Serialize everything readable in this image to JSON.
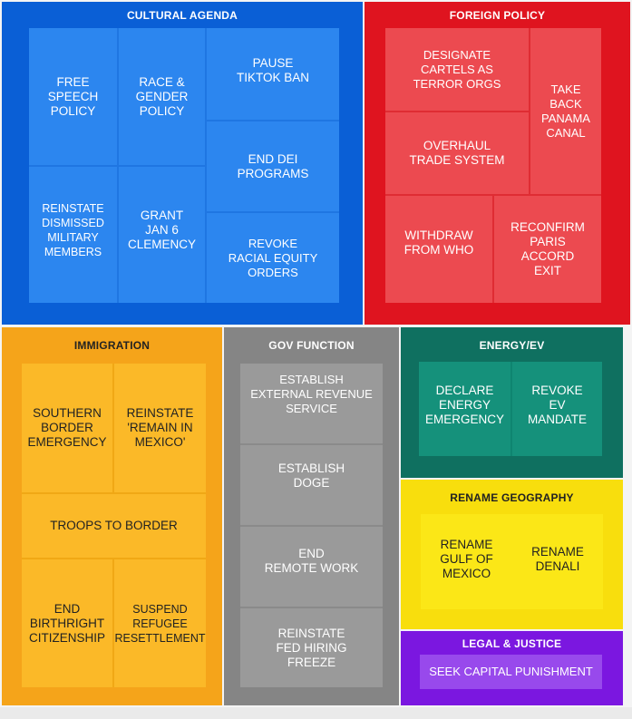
{
  "sections": {
    "cultural": {
      "title": "CULTURAL AGENDA",
      "color": "#0a5fd6",
      "items": [
        "FREE\nSPEECH\nPOLICY",
        "RACE &\nGENDER\nPOLICY",
        "PAUSE\nTIKTOK BAN",
        "END DEI\nPROGRAMS",
        "REINSTATE\nDISMISSED\nMILITARY\nMEMBERS",
        "GRANT\nJAN 6\nCLEMENCY",
        "REVOKE\nRACIAL EQUITY\nORDERS"
      ]
    },
    "foreign": {
      "title": "FOREIGN POLICY",
      "color": "#df141f",
      "items": [
        "DESIGNATE\nCARTELS AS\nTERROR ORGS",
        "TAKE\nBACK\nPANAMA\nCANAL",
        "OVERHAUL\nTRADE SYSTEM",
        "WITHDRAW\nFROM WHO",
        "RECONFIRM\nPARIS\nACCORD\nEXIT"
      ]
    },
    "immigration": {
      "title": "IMMIGRATION",
      "color": "#f5a41a",
      "items": [
        "SOUTHERN\nBORDER\nEMERGENCY",
        "REINSTATE\n'REMAIN IN\nMEXICO'",
        "TROOPS TO BORDER",
        "END\nBIRTHRIGHT\nCITIZENSHIP",
        "SUSPEND\nREFUGEE\nRESETTLEMENT"
      ]
    },
    "gov": {
      "title": "GOV FUNCTION",
      "color": "#858585",
      "items": [
        "ESTABLISH\nEXTERNAL REVENUE\nSERVICE",
        "ESTABLISH\nDOGE",
        "END\nREMOTE WORK",
        "REINSTATE\nFED HIRING\nFREEZE"
      ]
    },
    "energy": {
      "title": "ENERGY/EV",
      "color": "#0f7060",
      "items": [
        "DECLARE\nENERGY\nEMERGENCY",
        "REVOKE\nEV\nMANDATE"
      ]
    },
    "geography": {
      "title": "RENAME GEOGRAPHY",
      "color": "#f8de0d",
      "items": [
        "RENAME\nGULF OF\nMEXICO",
        "RENAME\nDENALI"
      ]
    },
    "legal": {
      "title": "LEGAL & JUSTICE",
      "color": "#7b17e0",
      "items": [
        "SEEK CAPITAL PUNISHMENT"
      ]
    }
  }
}
